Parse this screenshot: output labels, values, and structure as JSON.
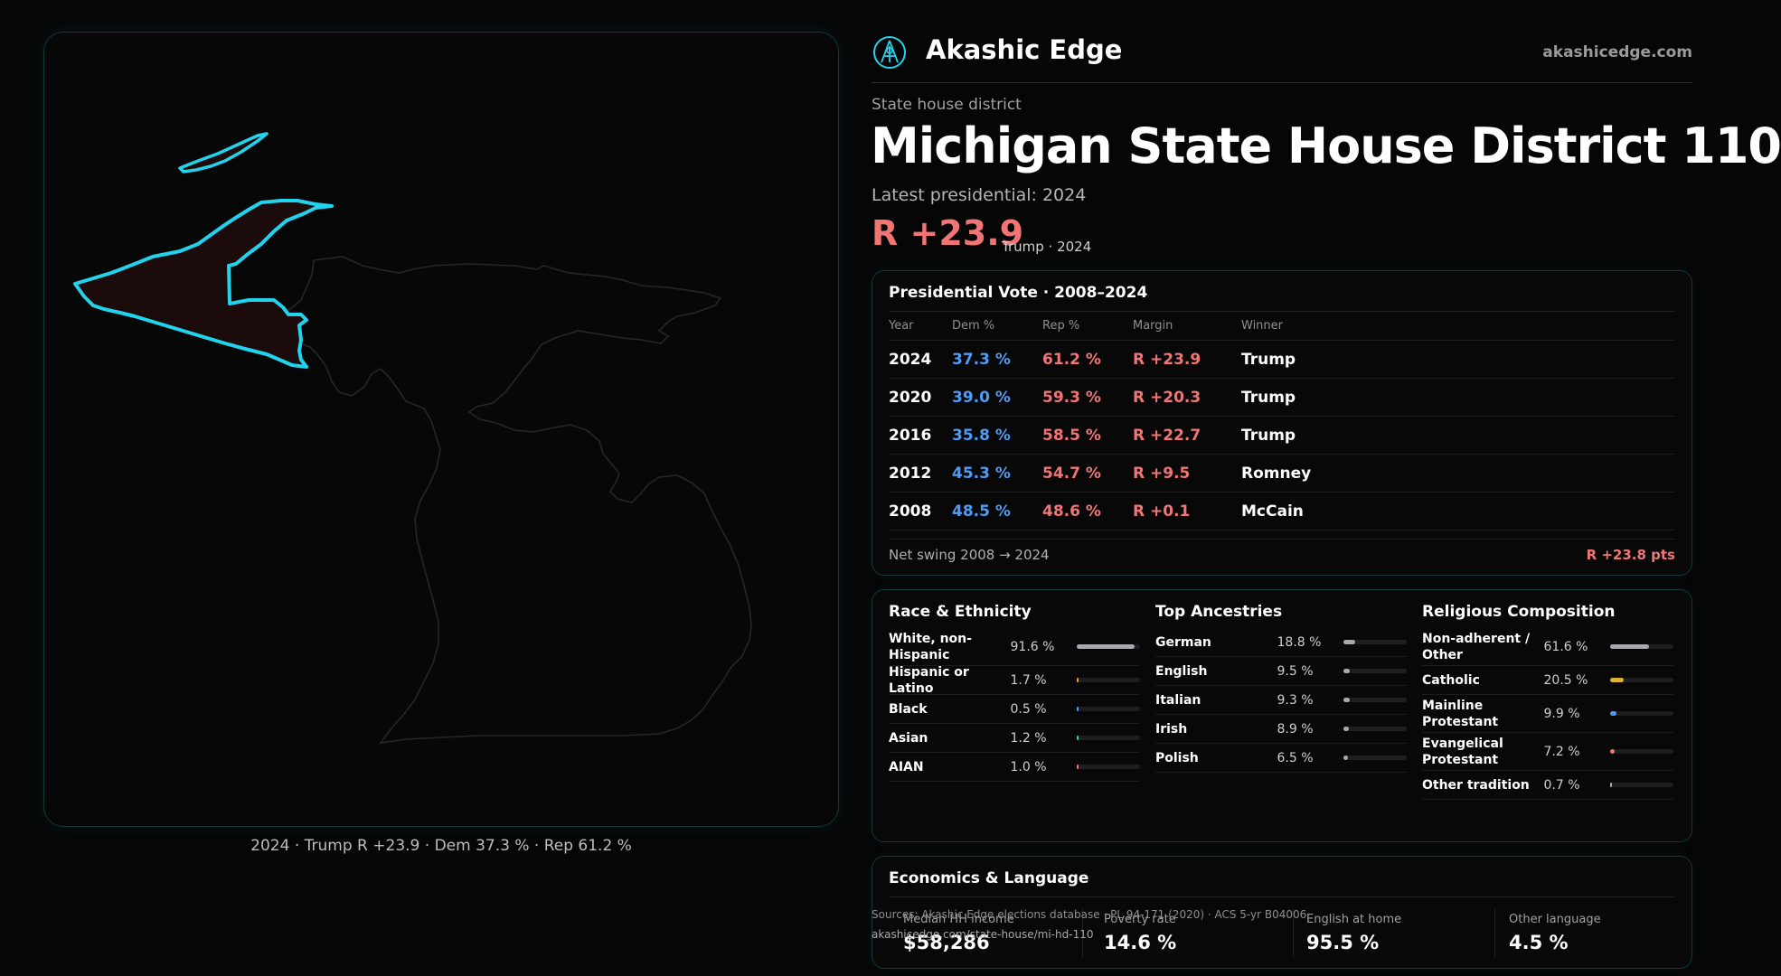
{
  "brand": {
    "name": "Akashic Edge",
    "domain": "akashicedge.com",
    "logo_icon": "akashic-edge-logo-icon"
  },
  "district": {
    "kind": "State house district",
    "title": "Michigan State House District 110",
    "latest": "Latest presidential: 2024",
    "margin": "R +23.9",
    "margin_sub": "Trump · 2024"
  },
  "map": {
    "caption": "2024 · Trump R +23.9 · Dem 37.3 % · Rep 61.2 %",
    "highlight_color": "#22d3ee"
  },
  "colors": {
    "dem": "#4f9cf5",
    "rep": "#f27575",
    "accent": "#22d3ee"
  },
  "vote": {
    "title": "Presidential Vote · 2008–2024",
    "headers": {
      "year": "Year",
      "dem": "Dem %",
      "rep": "Rep %",
      "margin": "Margin",
      "winner": "Winner"
    },
    "rows": [
      {
        "year": "2024",
        "dem": "37.3 %",
        "rep": "61.2 %",
        "margin": "R +23.9",
        "winner": "Trump"
      },
      {
        "year": "2020",
        "dem": "39.0 %",
        "rep": "59.3 %",
        "margin": "R +20.3",
        "winner": "Trump"
      },
      {
        "year": "2016",
        "dem": "35.8 %",
        "rep": "58.5 %",
        "margin": "R +22.7",
        "winner": "Trump"
      },
      {
        "year": "2012",
        "dem": "45.3 %",
        "rep": "54.7 %",
        "margin": "R +9.5",
        "winner": "Romney"
      },
      {
        "year": "2008",
        "dem": "48.5 %",
        "rep": "48.6 %",
        "margin": "R +0.1",
        "winner": "McCain"
      }
    ],
    "swing_label": "Net swing 2008 → 2024",
    "swing_value": "R +23.8 pts"
  },
  "race": {
    "title": "Race & Ethnicity",
    "items": [
      {
        "label": "White, non-Hispanic",
        "value": "91.6 %",
        "pct": 91.6,
        "color": "#a8a8b0"
      },
      {
        "label": "Hispanic or Latino",
        "value": "1.7 %",
        "pct": 1.7,
        "color": "#e0a030"
      },
      {
        "label": "Black",
        "value": "0.5 %",
        "pct": 0.5,
        "color": "#4f9cf5"
      },
      {
        "label": "Asian",
        "value": "1.2 %",
        "pct": 1.2,
        "color": "#2dd4a0"
      },
      {
        "label": "AIAN",
        "value": "1.0 %",
        "pct": 1.0,
        "color": "#f27575"
      }
    ]
  },
  "ancestry": {
    "title": "Top Ancestries",
    "items": [
      {
        "label": "German",
        "value": "18.8 %",
        "pct": 18.8,
        "color": "#a8a8b0"
      },
      {
        "label": "English",
        "value": "9.5 %",
        "pct": 9.5,
        "color": "#a8a8b0"
      },
      {
        "label": "Italian",
        "value": "9.3 %",
        "pct": 9.3,
        "color": "#a8a8b0"
      },
      {
        "label": "Irish",
        "value": "8.9 %",
        "pct": 8.9,
        "color": "#a8a8b0"
      },
      {
        "label": "Polish",
        "value": "6.5 %",
        "pct": 6.5,
        "color": "#a8a8b0"
      }
    ]
  },
  "religion": {
    "title": "Religious Composition",
    "items": [
      {
        "label": "Non-adherent / Other",
        "value": "61.6 %",
        "pct": 61.6,
        "color": "#a8a8b0"
      },
      {
        "label": "Catholic",
        "value": "20.5 %",
        "pct": 20.5,
        "color": "#e0b030"
      },
      {
        "label": "Mainline Protestant",
        "value": "9.9 %",
        "pct": 9.9,
        "color": "#4f9cf5"
      },
      {
        "label": "Evangelical Protestant",
        "value": "7.2 %",
        "pct": 7.2,
        "color": "#f27575"
      },
      {
        "label": "Other tradition",
        "value": "0.7 %",
        "pct": 0.7,
        "color": "#a8a8b0"
      }
    ]
  },
  "economics": {
    "title": "Economics & Language",
    "items": [
      {
        "label": "Median HH income",
        "value": "$58,286"
      },
      {
        "label": "Poverty rate",
        "value": "14.6 %"
      },
      {
        "label": "English at home",
        "value": "95.5 %"
      },
      {
        "label": "Other language",
        "value": "4.5 %"
      }
    ]
  },
  "footer": {
    "source": "Sources: Akashic Edge elections database · PL 94-171 (2020) · ACS 5-yr B04006",
    "url": "akashicedge.com/state-house/mi-hd-110"
  }
}
